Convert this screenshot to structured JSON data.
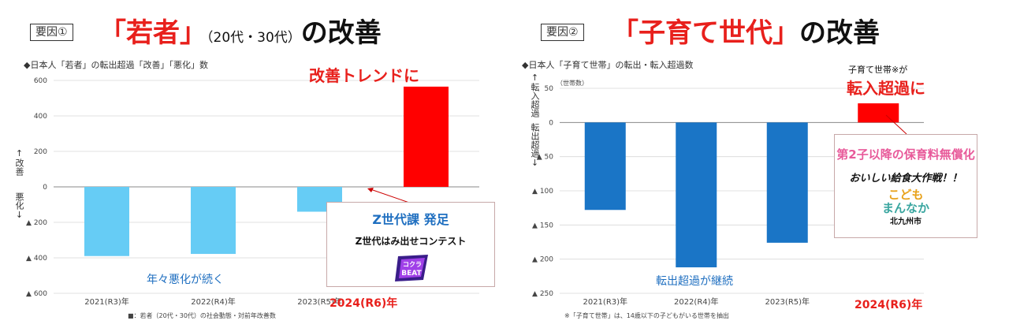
{
  "left": {
    "factor_label": "要因①",
    "heading": {
      "red": "「若者」",
      "small": "（20代・30代）",
      "black": "の改善"
    },
    "subtitle": "◆日本人「若者」の転出超過「改善」「悪化」数",
    "axis_up_label": "↑改善",
    "axis_down_label": "悪化↓",
    "top_annotation": "改善トレンドに",
    "bottom_annotation": "年々悪化が続く",
    "highlight_category": "2024(R6)年",
    "source_note": "■：若者（20代・30代）の社会動態・対前年改善数",
    "callout": {
      "title": "Z世代課  発足",
      "subtitle": "Z世代はみ出せコンテスト",
      "logo_text": "コクラBEAT"
    }
  },
  "right": {
    "factor_label": "要因②",
    "heading": {
      "red": "「子育て世代」",
      "black": "の改善"
    },
    "subtitle": "◆日本人「子育て世帯」の転出・転入超過数",
    "axis_up_label": "↑転入超過",
    "axis_down_label": "転出超過↓",
    "unit_label": "（世帯数）",
    "top_annotation_small": "子育て世帯※が",
    "top_annotation": "転入超過に",
    "bottom_annotation": "転出超過が継続",
    "highlight_category": "2024(R6)年",
    "footnote": "※「子育て世帯」は、14歳以下の子どもがいる世帯を抽出",
    "callout": {
      "line1": "第2子以降の保育料無償化",
      "line2": "おいしい給食大作戦！！",
      "logo_line1": "こども",
      "logo_line2": "まんなか",
      "logo_line3": "北九州市"
    }
  },
  "colors": {
    "red": "#ff0000",
    "light_blue": "#66ccf5",
    "blue": "#1a75c6",
    "grid": "#d9d9d9"
  },
  "chart_data": [
    {
      "type": "bar",
      "title": "日本人「若者」の転出超過「改善」「悪化」数",
      "categories": [
        "2021(R3)年",
        "2022(R4)年",
        "2023(R5)年",
        "2024(R6)年"
      ],
      "values": [
        -390,
        -378,
        -140,
        565
      ],
      "ylim": [
        -600,
        600
      ],
      "ytick_values": [
        600,
        400,
        200,
        0,
        -200,
        -400,
        -600
      ],
      "ytick_labels": [
        "600",
        "400",
        "200",
        "0",
        "▲ 200",
        "▲ 400",
        "▲ 600"
      ],
      "xlabel": "",
      "ylabel": "↑改善 悪化↓",
      "grid": true
    },
    {
      "type": "bar",
      "title": "日本人「子育て世帯」の転出・転入超過数",
      "categories": [
        "2021(R3)年",
        "2022(R4)年",
        "2023(R5)年",
        "2024(R6)年"
      ],
      "values": [
        -128,
        -212,
        -176,
        28
      ],
      "ylim": [
        -250,
        50
      ],
      "ytick_values": [
        50,
        0,
        -50,
        -100,
        -150,
        -200,
        -250
      ],
      "ytick_labels": [
        "50",
        "0",
        "▲ 50",
        "▲ 100",
        "▲ 150",
        "▲ 200",
        "▲ 250"
      ],
      "xlabel": "",
      "ylabel": "↑転入超過 転出超過↓",
      "unit": "世帯数",
      "grid": true
    }
  ]
}
